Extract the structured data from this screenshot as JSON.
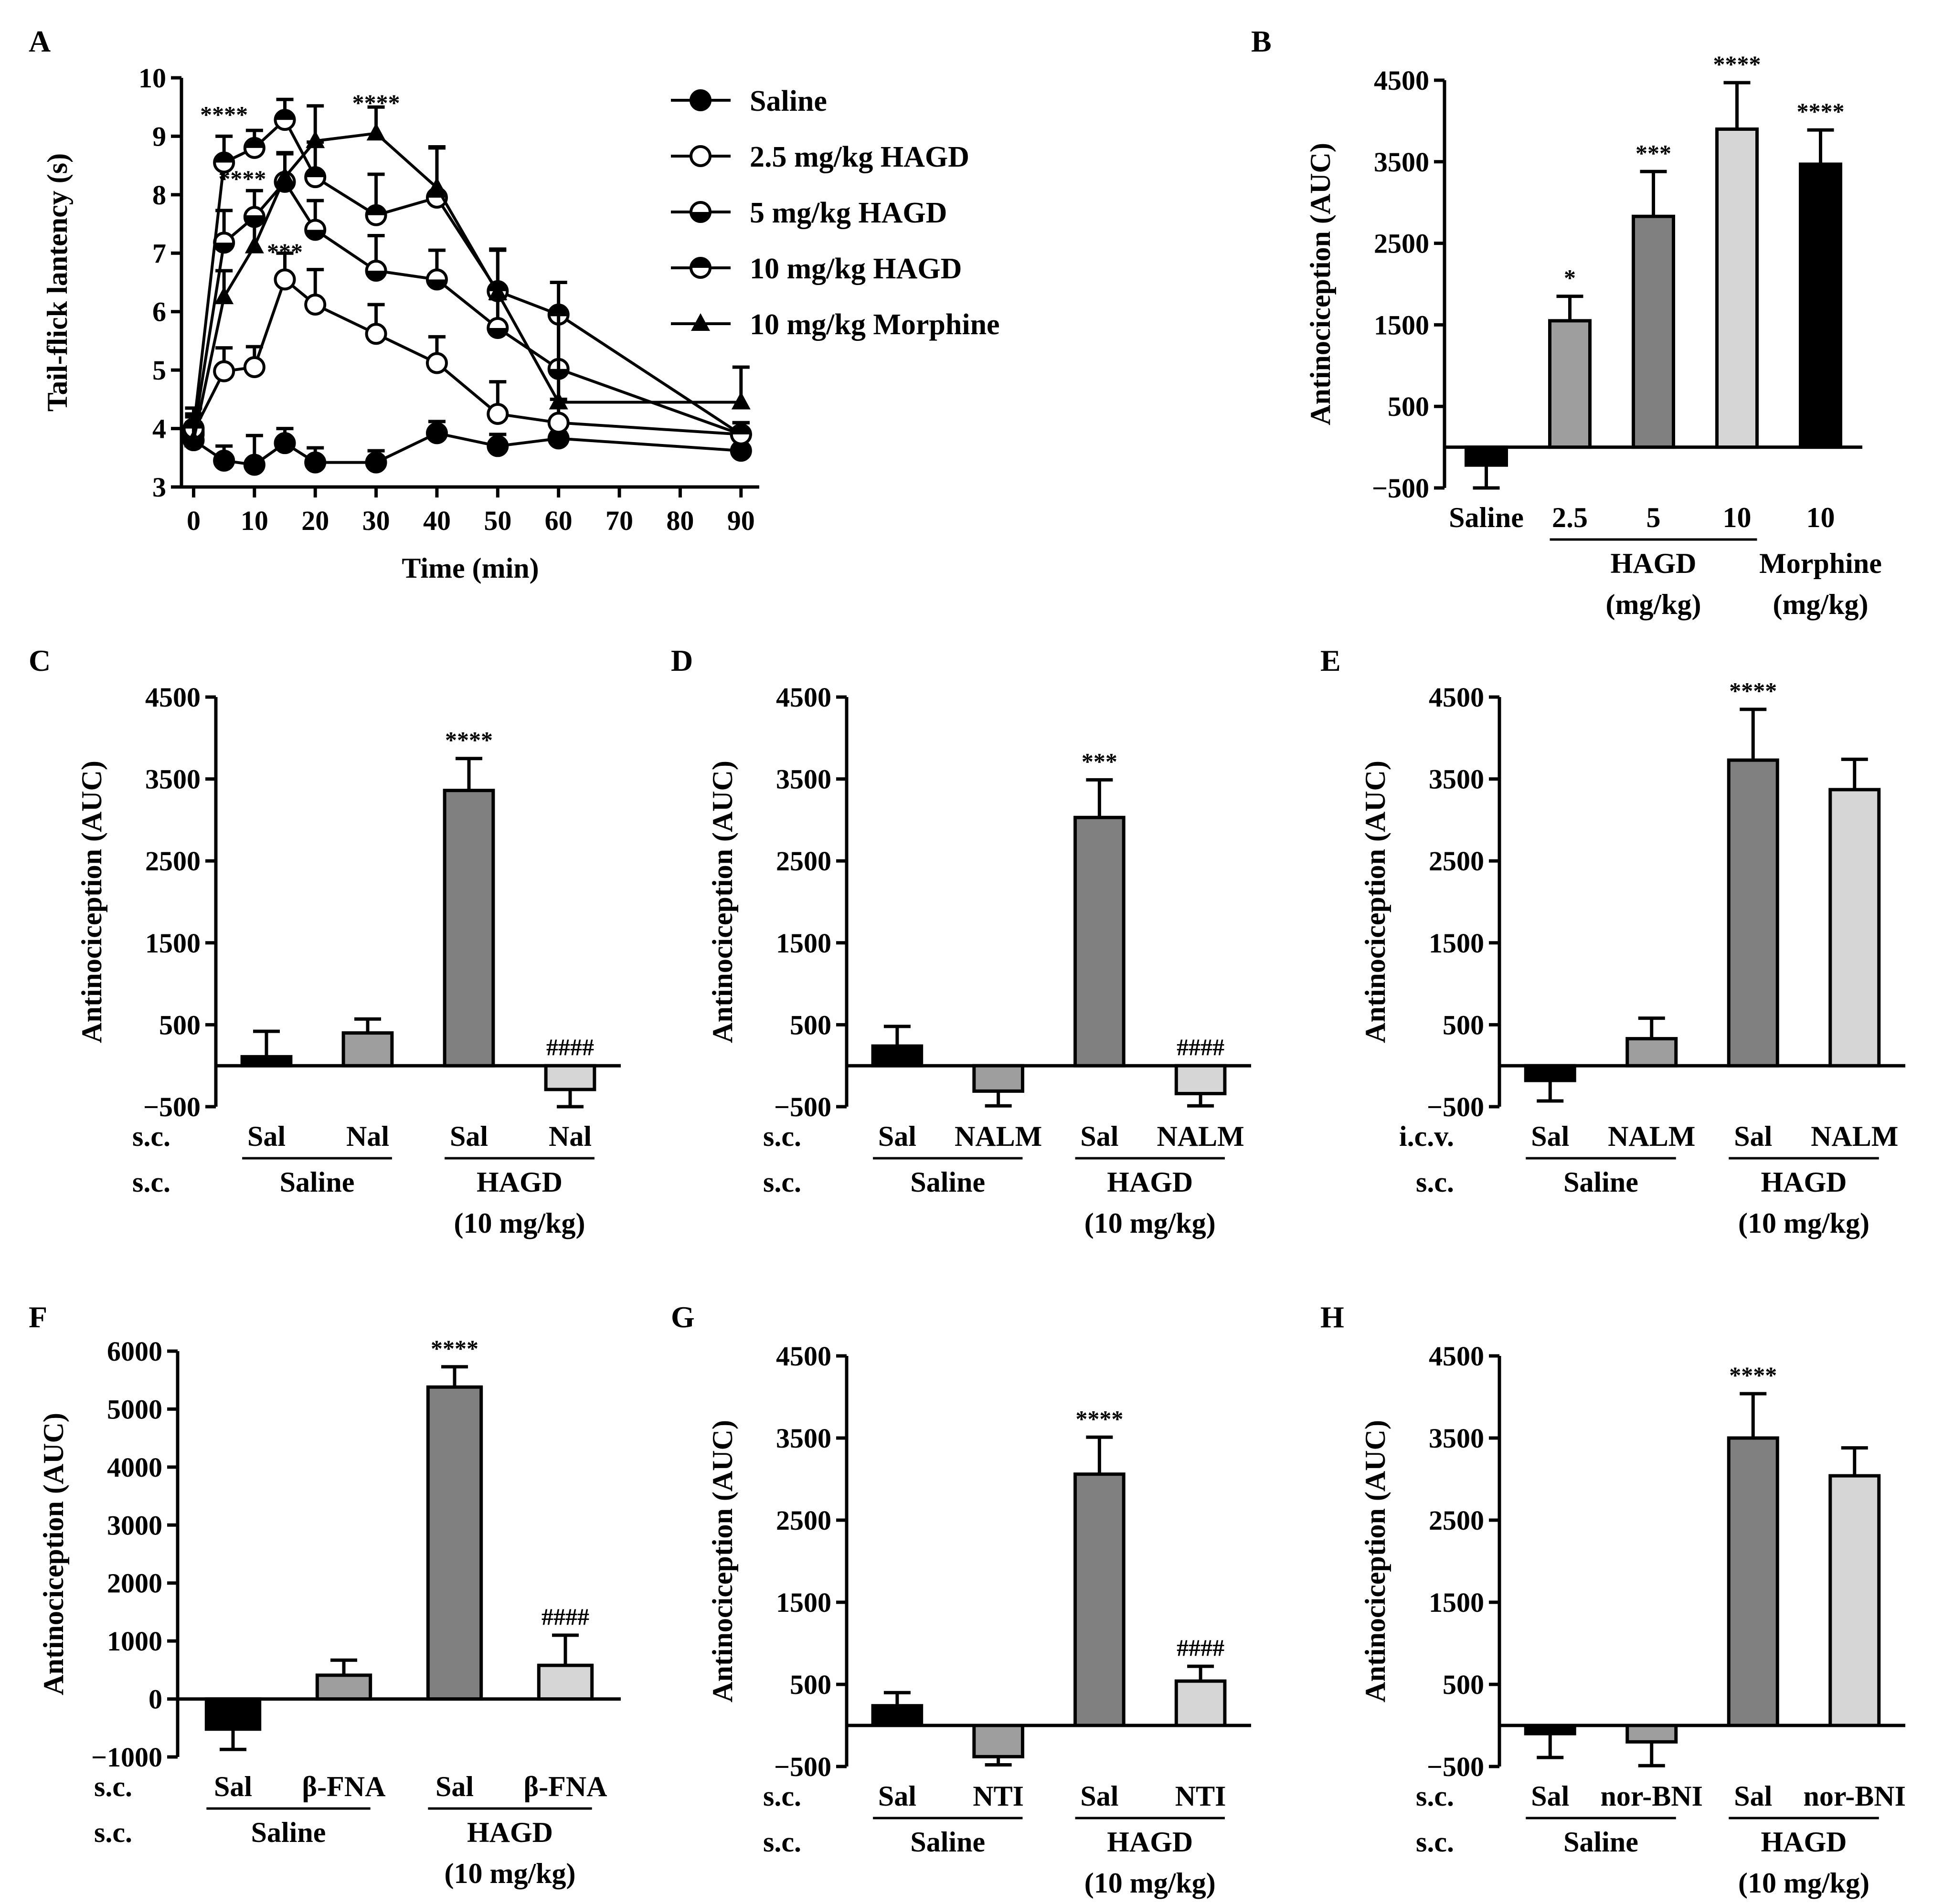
{
  "chart_data": [
    {
      "panel": "A",
      "type": "line",
      "xlabel": "Time (min)",
      "ylabel": "Tail-flick lantency (s)",
      "ylim": [
        3,
        10
      ],
      "yticks": [
        3,
        4,
        5,
        6,
        7,
        8,
        9,
        10
      ],
      "xticks": [
        "0",
        "10",
        "20",
        "30",
        "40",
        "50",
        "60",
        "70",
        "80",
        "90"
      ],
      "legend_position": "right",
      "series": [
        {
          "name": "Saline",
          "marker": "filled-circle",
          "x": [
            0,
            5,
            10,
            15,
            20,
            30,
            40,
            50,
            60,
            90
          ],
          "y": [
            3.8,
            3.45,
            3.38,
            3.75,
            3.42,
            3.42,
            3.92,
            3.7,
            3.83,
            3.62
          ],
          "err": [
            0.15,
            0.25,
            0.5,
            0.25,
            0.25,
            0.2,
            0.2,
            0.2,
            0.1,
            0.05
          ]
        },
        {
          "name": "2.5 mg/kg HAGD",
          "marker": "open-circle",
          "x": [
            0,
            5,
            10,
            15,
            20,
            30,
            40,
            50,
            60,
            90
          ],
          "y": [
            3.95,
            4.98,
            5.05,
            6.55,
            6.12,
            5.62,
            5.12,
            4.25,
            4.1,
            3.9
          ],
          "err": [
            0.3,
            0.4,
            0.35,
            0.45,
            0.6,
            0.5,
            0.45,
            0.55,
            0.4,
            0.2
          ]
        },
        {
          "name": "5 mg/kg HAGD",
          "marker": "bottom-half-circle",
          "x": [
            0,
            5,
            10,
            15,
            20,
            30,
            40,
            50,
            60,
            90
          ],
          "y": [
            3.9,
            7.18,
            7.62,
            8.22,
            7.4,
            6.7,
            6.55,
            5.72,
            5.02,
            3.9
          ],
          "err": [
            0.3,
            0.55,
            0.45,
            0.5,
            0.5,
            0.6,
            0.5,
            0.5,
            0.9,
            0.2
          ]
        },
        {
          "name": "10 mg/kg HAGD",
          "marker": "top-half-circle",
          "x": [
            0,
            5,
            10,
            15,
            20,
            30,
            40,
            50,
            60,
            90
          ],
          "y": [
            4.0,
            8.55,
            8.8,
            9.28,
            8.3,
            7.65,
            7.95,
            6.35,
            5.95,
            3.9
          ],
          "err": [
            0.35,
            0.45,
            0.3,
            0.35,
            0.6,
            0.7,
            0.85,
            0.7,
            0.55,
            0.2
          ]
        },
        {
          "name": "10 mg/kg Morphine",
          "marker": "filled-triangle",
          "x": [
            0,
            5,
            10,
            15,
            20,
            30,
            40,
            50,
            60,
            90
          ],
          "y": [
            3.8,
            6.25,
            7.12,
            8.3,
            8.92,
            9.05,
            8.12,
            6.32,
            4.45,
            4.45
          ],
          "err": [
            0.3,
            0.45,
            0.5,
            0.4,
            0.6,
            0.45,
            0.7,
            0.75,
            1.5,
            0.6
          ]
        }
      ],
      "annotations": [
        {
          "text": "****",
          "x": 5,
          "y": 9.4
        },
        {
          "text": "****",
          "x": 30,
          "y": 9.6
        },
        {
          "text": "****",
          "x": 8,
          "y": 8.3
        },
        {
          "text": "***",
          "x": 15,
          "y": 7.05
        }
      ]
    },
    {
      "panel": "B",
      "type": "bar",
      "ylabel": "Antinociception (AUC)",
      "ylim": [
        -500,
        4500
      ],
      "yticks": [
        "−500",
        "500",
        "1500",
        "2500",
        "3500",
        "4500"
      ],
      "categories": [
        "Saline",
        "2.5",
        "5",
        "10",
        "10"
      ],
      "values": [
        -220,
        1550,
        2830,
        3900,
        3470
      ],
      "err": [
        280,
        300,
        550,
        570,
        420
      ],
      "colors": [
        "#000000",
        "#9e9e9e",
        "#808080",
        "#d6d6d6",
        "#000000"
      ],
      "sig": [
        "",
        "*",
        "***",
        "****",
        "****"
      ],
      "groups": [
        {
          "label": "HAGD",
          "sub": "(mg/kg)",
          "from": 1,
          "to": 3,
          "underline": true
        },
        {
          "label": "Morphine",
          "sub": "(mg/kg)",
          "from": 4,
          "to": 4,
          "underline": false
        }
      ]
    },
    {
      "panel": "C",
      "type": "bar",
      "ylabel": "Antinociception (AUC)",
      "ylim": [
        -500,
        4500
      ],
      "yticks": [
        "−500",
        "500",
        "1500",
        "2500",
        "3500",
        "4500"
      ],
      "categories": [
        "Sal",
        "Nal",
        "Sal",
        "Nal"
      ],
      "values": [
        110,
        400,
        3360,
        -290
      ],
      "err": [
        310,
        170,
        390,
        210
      ],
      "colors": [
        "#000000",
        "#9e9e9e",
        "#808080",
        "#d6d6d6"
      ],
      "sig": [
        "",
        "",
        "****",
        "####"
      ],
      "row1": "s.c.",
      "row2": "s.c.",
      "groups": [
        {
          "label": "Saline",
          "sub": "",
          "from": 0,
          "to": 1,
          "underline": true
        },
        {
          "label": "HAGD",
          "sub": "(10 mg/kg)",
          "from": 2,
          "to": 3,
          "underline": true
        }
      ]
    },
    {
      "panel": "D",
      "type": "bar",
      "ylabel": "Antinociception (AUC)",
      "ylim": [
        -500,
        4500
      ],
      "yticks": [
        "−500",
        "500",
        "1500",
        "2500",
        "3500",
        "4500"
      ],
      "categories": [
        "Sal",
        "NALM",
        "Sal",
        "NALM"
      ],
      "values": [
        240,
        -310,
        3030,
        -340
      ],
      "err": [
        240,
        180,
        460,
        150
      ],
      "colors": [
        "#000000",
        "#9e9e9e",
        "#808080",
        "#d6d6d6"
      ],
      "sig": [
        "",
        "",
        "***",
        "####"
      ],
      "row1": "s.c.",
      "row2": "s.c.",
      "groups": [
        {
          "label": "Saline",
          "sub": "",
          "from": 0,
          "to": 1,
          "underline": true
        },
        {
          "label": "HAGD",
          "sub": "(10 mg/kg)",
          "from": 2,
          "to": 3,
          "underline": true
        }
      ]
    },
    {
      "panel": "E",
      "type": "bar",
      "ylabel": "Antinociception (AUC)",
      "ylim": [
        -500,
        4500
      ],
      "yticks": [
        "−500",
        "500",
        "1500",
        "2500",
        "3500",
        "4500"
      ],
      "categories": [
        "Sal",
        "NALM",
        "Sal",
        "NALM"
      ],
      "values": [
        -180,
        330,
        3730,
        3370
      ],
      "err": [
        250,
        250,
        620,
        370
      ],
      "colors": [
        "#000000",
        "#9e9e9e",
        "#808080",
        "#d6d6d6"
      ],
      "sig": [
        "",
        "",
        "****",
        ""
      ],
      "row1": "i.c.v.",
      "row2": "s.c.",
      "groups": [
        {
          "label": "Saline",
          "sub": "",
          "from": 0,
          "to": 1,
          "underline": true
        },
        {
          "label": "HAGD",
          "sub": "(10 mg/kg)",
          "from": 2,
          "to": 3,
          "underline": true
        }
      ]
    },
    {
      "panel": "F",
      "type": "bar",
      "ylabel": "Antinociception (AUC)",
      "ylim": [
        -1000,
        6000
      ],
      "yticks": [
        "−1000",
        "0",
        "1000",
        "2000",
        "3000",
        "4000",
        "5000",
        "6000"
      ],
      "categories": [
        "Sal",
        "β-FNA",
        "Sal",
        "β-FNA"
      ],
      "values": [
        -520,
        410,
        5380,
        580
      ],
      "err": [
        350,
        260,
        350,
        520
      ],
      "colors": [
        "#000000",
        "#9e9e9e",
        "#808080",
        "#d6d6d6"
      ],
      "sig": [
        "",
        "",
        "****",
        "####"
      ],
      "row1": "s.c.",
      "row2": "s.c.",
      "groups": [
        {
          "label": "Saline",
          "sub": "",
          "from": 0,
          "to": 1,
          "underline": true
        },
        {
          "label": "HAGD",
          "sub": "(10 mg/kg)",
          "from": 2,
          "to": 3,
          "underline": true
        }
      ]
    },
    {
      "panel": "G",
      "type": "bar",
      "ylabel": "Antinociception (AUC)",
      "ylim": [
        -500,
        4500
      ],
      "yticks": [
        "−500",
        "500",
        "1500",
        "2500",
        "3500",
        "4500"
      ],
      "categories": [
        "Sal",
        "NTI",
        "Sal",
        "NTI"
      ],
      "values": [
        240,
        -380,
        3060,
        540
      ],
      "err": [
        160,
        100,
        450,
        180
      ],
      "colors": [
        "#000000",
        "#9e9e9e",
        "#808080",
        "#d6d6d6"
      ],
      "sig": [
        "",
        "",
        "****",
        "####"
      ],
      "row1": "s.c.",
      "row2": "s.c.",
      "groups": [
        {
          "label": "Saline",
          "sub": "",
          "from": 0,
          "to": 1,
          "underline": true
        },
        {
          "label": "HAGD",
          "sub": "(10 mg/kg)",
          "from": 2,
          "to": 3,
          "underline": true
        }
      ]
    },
    {
      "panel": "H",
      "type": "bar",
      "ylabel": "Antinociception (AUC)",
      "ylim": [
        -500,
        4500
      ],
      "yticks": [
        "−500",
        "500",
        "1500",
        "2500",
        "3500",
        "4500"
      ],
      "categories": [
        "Sal",
        "nor-BNI",
        "Sal",
        "nor-BNI"
      ],
      "values": [
        -100,
        -200,
        3500,
        3040
      ],
      "err": [
        290,
        290,
        540,
        340
      ],
      "colors": [
        "#000000",
        "#9e9e9e",
        "#808080",
        "#d6d6d6"
      ],
      "sig": [
        "",
        "",
        "****",
        ""
      ],
      "row1": "s.c.",
      "row2": "s.c.",
      "groups": [
        {
          "label": "Saline",
          "sub": "",
          "from": 0,
          "to": 1,
          "underline": true
        },
        {
          "label": "HAGD",
          "sub": "(10 mg/kg)",
          "from": 2,
          "to": 3,
          "underline": true
        }
      ]
    }
  ]
}
